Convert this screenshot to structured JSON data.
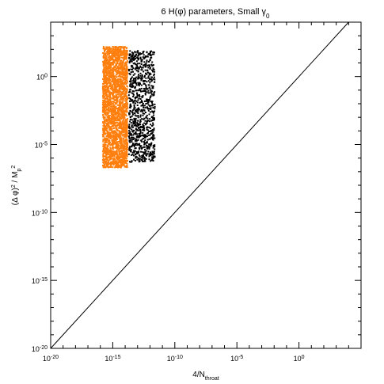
{
  "chart_data": {
    "type": "scatter",
    "title": "6 H(φ) parameters, Small γ",
    "title_subscript": "0",
    "xlabel": "4/N",
    "xlabel_subscript": "throat",
    "ylabel": "(Δ φ)",
    "ylabel_sup": "2",
    "ylabel_rest": " / M",
    "ylabel_rest_sub": "p",
    "ylabel_rest_sup": "2",
    "x_scale": "log",
    "y_scale": "log",
    "xlim": [
      1e-20,
      100000.0
    ],
    "ylim": [
      1e-20,
      10000.0
    ],
    "x_ticks": [
      {
        "value": 1e-20,
        "base": "10",
        "exp": "-20"
      },
      {
        "value": 1e-15,
        "base": "10",
        "exp": "-15"
      },
      {
        "value": 1e-10,
        "base": "10",
        "exp": "-10"
      },
      {
        "value": 1e-05,
        "base": "10",
        "exp": "-5"
      },
      {
        "value": 1,
        "base": "10",
        "exp": "0"
      }
    ],
    "y_ticks": [
      {
        "value": 1e-20,
        "base": "10",
        "exp": "-20"
      },
      {
        "value": 1e-15,
        "base": "10",
        "exp": "-15"
      },
      {
        "value": 1e-10,
        "base": "10",
        "exp": "-10"
      },
      {
        "value": 1e-05,
        "base": "10",
        "exp": "-5"
      },
      {
        "value": 1,
        "base": "10",
        "exp": "0"
      }
    ],
    "reference_line": {
      "type": "y=x"
    },
    "series": [
      {
        "color": "#ff7f0e",
        "x_log_range": [
          -15.8,
          -13.8
        ],
        "y_log_range": [
          -6.7,
          2.2
        ],
        "count": 2600
      },
      {
        "color": "#000000",
        "x_log_range": [
          -13.7,
          -11.6
        ],
        "y_log_range": [
          -6.3,
          1.9
        ],
        "count": 900
      }
    ],
    "grid": false,
    "legend": "none"
  }
}
